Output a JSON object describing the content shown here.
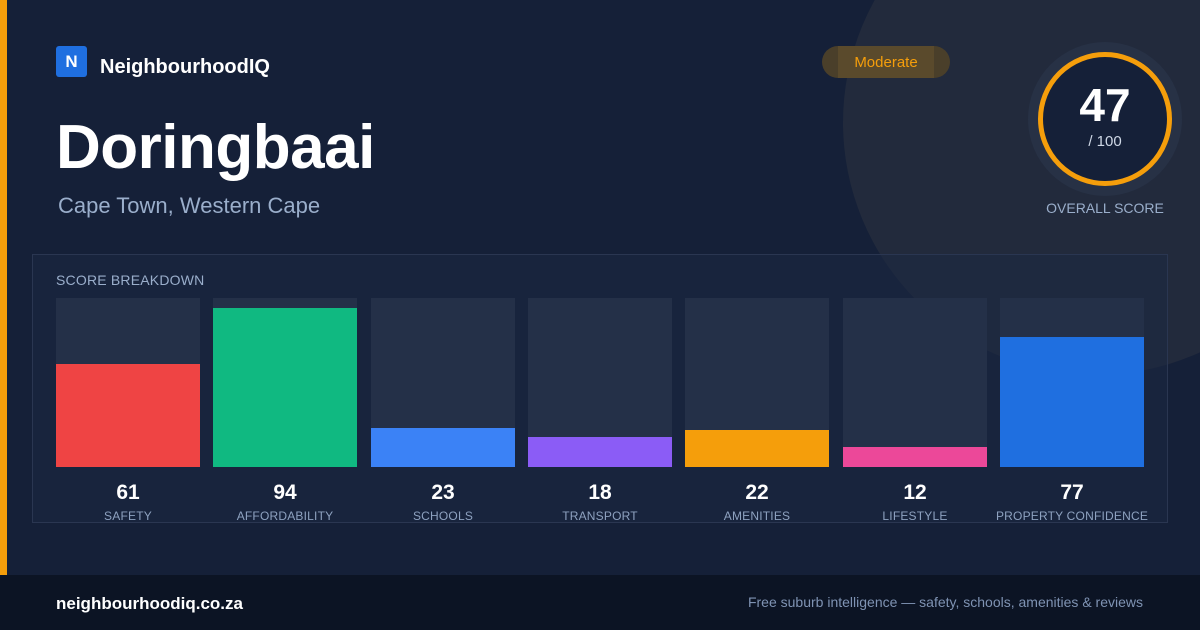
{
  "brand": {
    "logo_letter": "N",
    "name": "NeighbourhoodIQ",
    "accent": "#1f6fe0"
  },
  "suburb": {
    "name": "Doringbaai",
    "location": "Cape Town, Western Cape"
  },
  "rating": {
    "badge": "Moderate",
    "color": "#f59e0b"
  },
  "overall": {
    "score": "47",
    "out_of": "/ 100",
    "label": "OVERALL SCORE"
  },
  "breakdown": {
    "title": "SCORE BREAKDOWN",
    "items": [
      {
        "label": "SAFETY",
        "value": 61,
        "display": "61",
        "color": "#ef4444"
      },
      {
        "label": "AFFORDABILITY",
        "value": 94,
        "display": "94",
        "color": "#10b981"
      },
      {
        "label": "SCHOOLS",
        "value": 23,
        "display": "23",
        "color": "#3b82f6"
      },
      {
        "label": "TRANSPORT",
        "value": 18,
        "display": "18",
        "color": "#8b5cf6"
      },
      {
        "label": "AMENITIES",
        "value": 22,
        "display": "22",
        "color": "#f59e0b"
      },
      {
        "label": "LIFESTYLE",
        "value": 12,
        "display": "12",
        "color": "#ec4899"
      },
      {
        "label": "PROPERTY CONFIDENCE",
        "value": 77,
        "display": "77",
        "color": "#1f6fe0"
      }
    ]
  },
  "footer": {
    "url": "neighbourhoodiq.co.za",
    "tagline": "Free suburb intelligence — safety, schools, amenities & reviews"
  }
}
